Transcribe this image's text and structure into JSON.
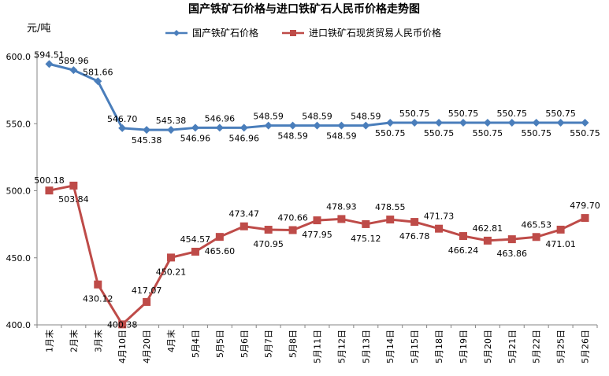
{
  "chart_data": {
    "type": "line",
    "title": "国产铁矿石价格与进口铁矿石人民币价格走势图",
    "ylabel": "元/吨",
    "xlabel": "",
    "ylim": [
      400,
      600
    ],
    "yticks": [
      "400.0",
      "450.0",
      "500.0",
      "550.0",
      "600.0"
    ],
    "grid": false,
    "legend_position": "top-center",
    "categories": [
      "1月末",
      "2月末",
      "3月末",
      "4月10日",
      "4月20日",
      "4月末",
      "5月4日",
      "5月5日",
      "5月6日",
      "5月7日",
      "5月8日",
      "5月11日",
      "5月12日",
      "5月13日",
      "5月14日",
      "5月15日",
      "5月18日",
      "5月19日",
      "5月20日",
      "5月21日",
      "5月22日",
      "5月25日",
      "5月26日"
    ],
    "series": [
      {
        "name": "国产铁矿石价格",
        "color": "#4a7ebb",
        "marker": "diamond",
        "values": [
          594.51,
          589.96,
          581.66,
          546.7,
          545.38,
          545.38,
          546.96,
          546.96,
          546.96,
          548.59,
          548.59,
          548.59,
          548.59,
          548.59,
          550.75,
          550.75,
          550.75,
          550.75,
          550.75,
          550.75,
          550.75,
          550.75,
          550.75
        ],
        "labels": [
          "594.51",
          "589.96",
          "581.66",
          "546.70",
          "545.38",
          "545.38",
          "546.96",
          "546.96",
          "546.96",
          "548.59",
          "548.59",
          "548.59",
          "548.59",
          "548.59",
          "550.75",
          "550.75",
          "550.75",
          "550.75",
          "550.75",
          "550.75",
          "550.75",
          "550.75",
          "550.75"
        ]
      },
      {
        "name": "进口铁矿石现货贸易人民币价格",
        "color": "#be4b48",
        "marker": "square",
        "values": [
          500.18,
          503.84,
          430.12,
          400.38,
          417.07,
          450.21,
          454.57,
          465.6,
          473.47,
          470.95,
          470.66,
          477.95,
          478.93,
          475.12,
          478.55,
          476.78,
          471.73,
          466.24,
          462.81,
          463.86,
          465.53,
          471.01,
          479.7
        ],
        "labels": [
          "500.18",
          "503.84",
          "430.12",
          "400.38",
          "417.07",
          "450.21",
          "454.57",
          "465.60",
          "473.47",
          "470.95",
          "470.66",
          "477.95",
          "478.93",
          "475.12",
          "478.55",
          "476.78",
          "471.73",
          "466.24",
          "462.81",
          "463.86",
          "465.53",
          "471.01",
          "479.70"
        ]
      }
    ]
  }
}
